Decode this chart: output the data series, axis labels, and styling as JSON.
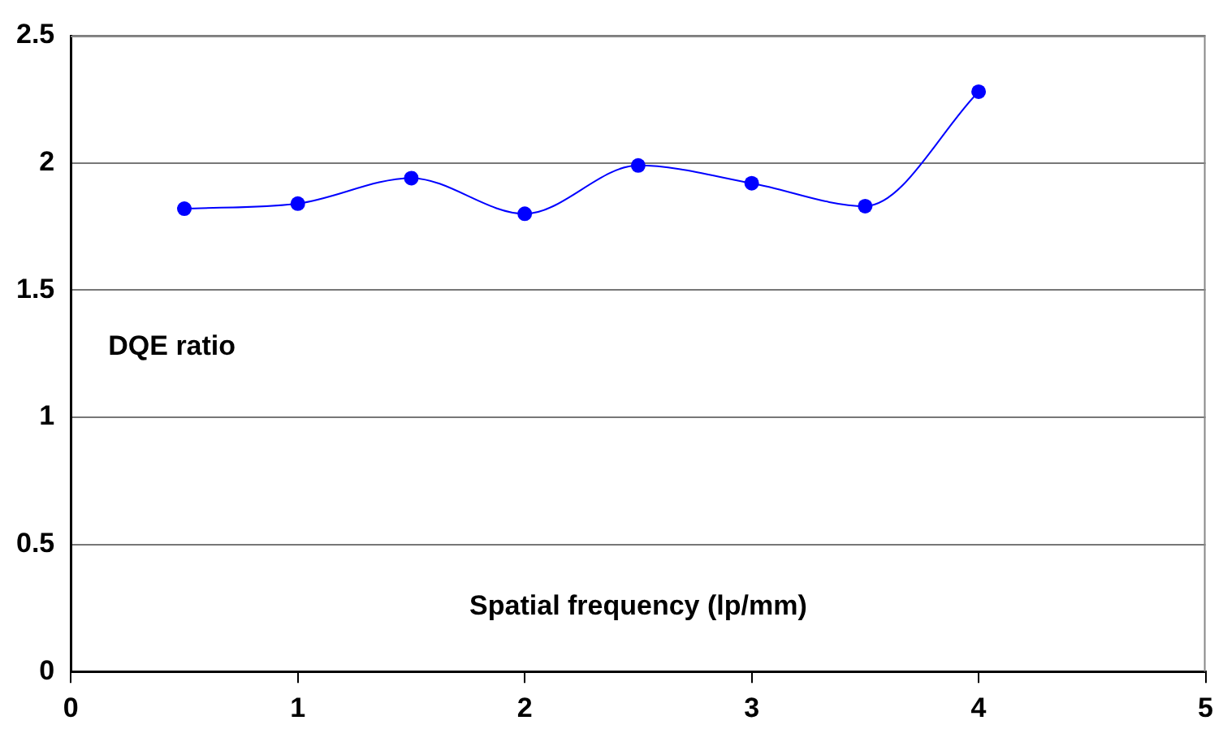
{
  "chart_data": {
    "type": "line",
    "xlabel": "Spatial frequency (lp/mm)",
    "ylabel": "DQE ratio",
    "x": [
      0.5,
      1,
      1.5,
      2,
      2.5,
      3,
      3.5,
      4
    ],
    "series": [
      {
        "color": "#0000ff",
        "values": [
          1.82,
          1.84,
          1.94,
          1.8,
          1.99,
          1.92,
          1.83,
          2.28
        ]
      }
    ],
    "xlim": [
      0,
      5
    ],
    "xticks": [
      0,
      1,
      2,
      3,
      4,
      5
    ],
    "ylim": [
      0,
      2.5
    ],
    "yticks": [
      0,
      0.5,
      1,
      1.5,
      2,
      2.5
    ],
    "grid": "y",
    "legend": false,
    "marker": "circle",
    "line_style": "solid"
  }
}
